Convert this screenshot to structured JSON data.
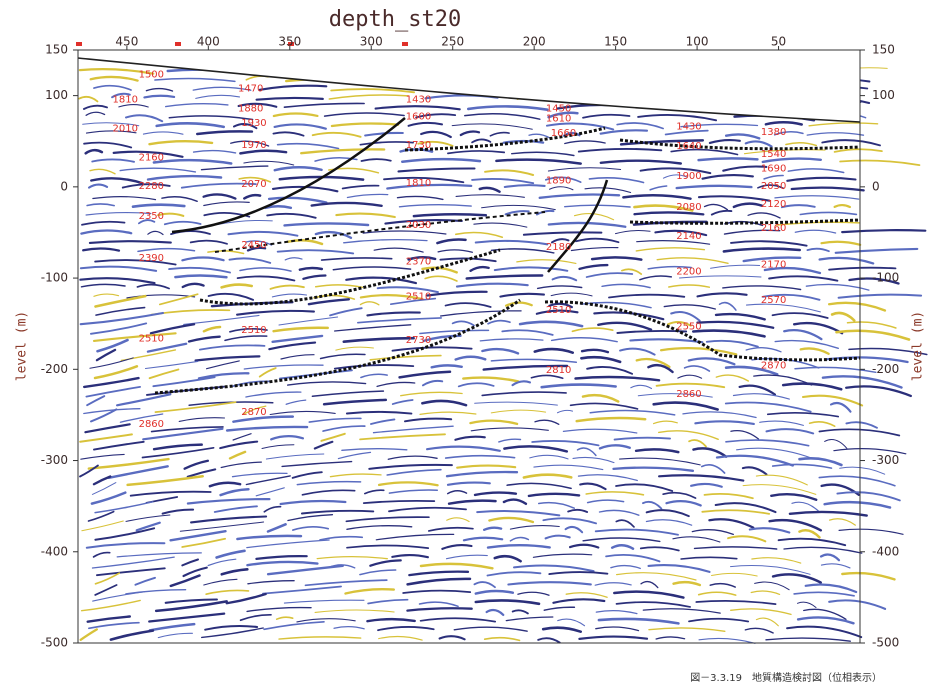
{
  "chart_data": {
    "type": "seismic-section",
    "title": "depth_st20",
    "ylabel": "level (m)",
    "caption": "図－3.3.19　地質構造検討図（位相表示）",
    "xlim": [
      480,
      0
    ],
    "xticks": [
      450,
      400,
      350,
      300,
      250,
      200,
      150,
      100,
      50
    ],
    "ylim": [
      -500,
      150
    ],
    "yticks": [
      150,
      100,
      0,
      -100,
      -200,
      -300,
      -400,
      -500
    ],
    "annotation_color": "#e0302a",
    "annotations": [
      {
        "text": "1500",
        "x": 435,
        "y": 123
      },
      {
        "text": "1470",
        "x": 374,
        "y": 108
      },
      {
        "text": "1810",
        "x": 451,
        "y": 96
      },
      {
        "text": "1880",
        "x": 374,
        "y": 86
      },
      {
        "text": "1430",
        "x": 271,
        "y": 96
      },
      {
        "text": "1600",
        "x": 271,
        "y": 77
      },
      {
        "text": "1450",
        "x": 185,
        "y": 86
      },
      {
        "text": "1610",
        "x": 185,
        "y": 75
      },
      {
        "text": "1660",
        "x": 182,
        "y": 59
      },
      {
        "text": "1430",
        "x": 105,
        "y": 66
      },
      {
        "text": "1380",
        "x": 53,
        "y": 60
      },
      {
        "text": "2010",
        "x": 451,
        "y": 64
      },
      {
        "text": "1930",
        "x": 372,
        "y": 70
      },
      {
        "text": "1970",
        "x": 372,
        "y": 46
      },
      {
        "text": "1730",
        "x": 271,
        "y": 46
      },
      {
        "text": "1640",
        "x": 105,
        "y": 45
      },
      {
        "text": "1540",
        "x": 53,
        "y": 36
      },
      {
        "text": "2160",
        "x": 435,
        "y": 32
      },
      {
        "text": "1690",
        "x": 53,
        "y": 20
      },
      {
        "text": "1890",
        "x": 185,
        "y": 7
      },
      {
        "text": "1900",
        "x": 105,
        "y": 12
      },
      {
        "text": "2280",
        "x": 435,
        "y": 1
      },
      {
        "text": "2070",
        "x": 372,
        "y": 3
      },
      {
        "text": "1810",
        "x": 271,
        "y": 4
      },
      {
        "text": "2050",
        "x": 53,
        "y": 1
      },
      {
        "text": "2080",
        "x": 105,
        "y": -22
      },
      {
        "text": "2120",
        "x": 53,
        "y": -19
      },
      {
        "text": "2350",
        "x": 435,
        "y": -32
      },
      {
        "text": "2030",
        "x": 271,
        "y": -42
      },
      {
        "text": "2160",
        "x": 53,
        "y": -45
      },
      {
        "text": "2140",
        "x": 105,
        "y": -54
      },
      {
        "text": "2450",
        "x": 372,
        "y": -64
      },
      {
        "text": "2180",
        "x": 185,
        "y": -66
      },
      {
        "text": "2390",
        "x": 435,
        "y": -78
      },
      {
        "text": "2370",
        "x": 271,
        "y": -82
      },
      {
        "text": "2170",
        "x": 53,
        "y": -85
      },
      {
        "text": "2200",
        "x": 105,
        "y": -93
      },
      {
        "text": "2570",
        "x": 53,
        "y": -124
      },
      {
        "text": "2510",
        "x": 271,
        "y": -120
      },
      {
        "text": "2510",
        "x": 185,
        "y": -135
      },
      {
        "text": "2550",
        "x": 105,
        "y": -153
      },
      {
        "text": "2510",
        "x": 435,
        "y": -166
      },
      {
        "text": "2510",
        "x": 372,
        "y": -157
      },
      {
        "text": "2730",
        "x": 271,
        "y": -168
      },
      {
        "text": "2870",
        "x": 53,
        "y": -196
      },
      {
        "text": "2810",
        "x": 185,
        "y": -201
      },
      {
        "text": "2860",
        "x": 105,
        "y": -227
      },
      {
        "text": "2870",
        "x": 372,
        "y": -247
      },
      {
        "text": "2860",
        "x": 435,
        "y": -260
      }
    ]
  }
}
